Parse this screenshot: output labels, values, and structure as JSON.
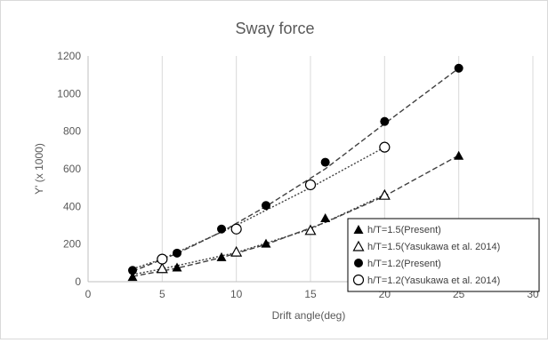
{
  "chart_data": {
    "type": "scatter",
    "title": "Sway force",
    "xlabel": "Drift angle(deg)",
    "ylabel": "Y' (x 1000)",
    "xlim": [
      0,
      30
    ],
    "ylim": [
      0,
      1200
    ],
    "xticks": [
      0,
      5,
      10,
      15,
      20,
      25,
      30
    ],
    "yticks": [
      0,
      200,
      400,
      600,
      800,
      1000,
      1200
    ],
    "grid": "vertical",
    "legend_position": "bottom-right",
    "series": [
      {
        "name": "h/T=1.5(Present)",
        "marker": "filled-triangle",
        "x": [
          3,
          6,
          9,
          12,
          16,
          20,
          25
        ],
        "y": [
          28,
          78,
          133,
          205,
          340,
          468,
          672
        ]
      },
      {
        "name": "h/T=1.5(Yasukawa et al. 2014)",
        "marker": "open-triangle",
        "x": [
          5,
          10,
          15,
          20
        ],
        "y": [
          72,
          160,
          275,
          462
        ]
      },
      {
        "name": "h/T=1.2(Present)",
        "marker": "filled-circle",
        "x": [
          3,
          6,
          9,
          12,
          16,
          20,
          25
        ],
        "y": [
          60,
          152,
          280,
          405,
          635,
          852,
          1135
        ]
      },
      {
        "name": "h/T=1.2(Yasukawa et al. 2014)",
        "marker": "open-circle",
        "x": [
          5,
          10,
          15,
          20
        ],
        "y": [
          120,
          280,
          515,
          715
        ]
      }
    ],
    "trendlines": [
      {
        "series": 0,
        "style": "dashed",
        "x": [
          3,
          6,
          9,
          12,
          16,
          20,
          25
        ],
        "y": [
          28,
          72,
          128,
          198,
          315,
          455,
          672
        ]
      },
      {
        "series": 1,
        "style": "dotted",
        "x": [
          3,
          5,
          10,
          15,
          20
        ],
        "y": [
          38,
          68,
          155,
          280,
          462
        ]
      },
      {
        "series": 2,
        "style": "dashed",
        "x": [
          3,
          6,
          9,
          12,
          16,
          20,
          25
        ],
        "y": [
          55,
          150,
          265,
          400,
          600,
          840,
          1135
        ]
      },
      {
        "series": 3,
        "style": "dotted",
        "x": [
          3,
          5,
          10,
          15,
          20
        ],
        "y": [
          68,
          120,
          300,
          500,
          715
        ]
      }
    ],
    "colors": {
      "marker": "#000000",
      "trendline": "#404040",
      "text": "#595959",
      "grid": "#d9d9d9"
    }
  }
}
